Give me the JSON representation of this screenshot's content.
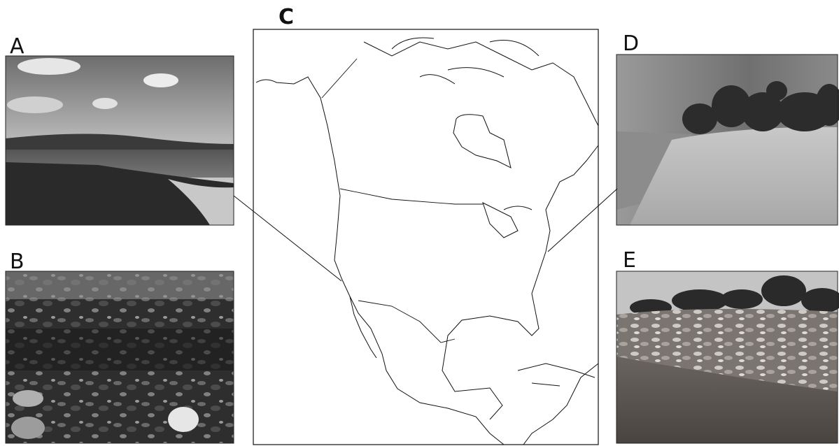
{
  "panels": [
    {
      "label": "A"
    },
    {
      "label": "B"
    },
    {
      "label": "C"
    },
    {
      "label": "D"
    },
    {
      "label": "E"
    }
  ]
}
